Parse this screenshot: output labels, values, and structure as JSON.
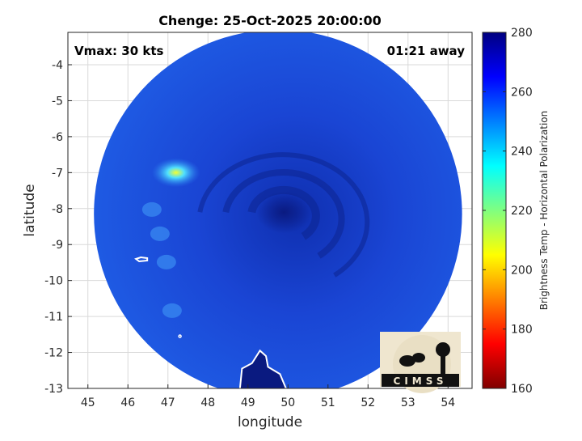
{
  "chart_data": {
    "type": "heatmap",
    "title": "Chenge: 25-Oct-2025 20:00:00",
    "xlabel": "longitude",
    "ylabel": "latitude",
    "xlim": [
      44.5,
      54.6
    ],
    "ylim": [
      -13.0,
      -3.1
    ],
    "xticks": [
      "45",
      "46",
      "47",
      "48",
      "49",
      "50",
      "51",
      "52",
      "53",
      "54"
    ],
    "yticks": [
      "-4",
      "-5",
      "-6",
      "-7",
      "-8",
      "-9",
      "-10",
      "-11",
      "-12",
      "-13"
    ],
    "grid": true,
    "annotations": {
      "left": "Vmax: 30 kts",
      "right": "01:21 away"
    },
    "colorbar": {
      "label": "Brightness Temp - Horizontal Polarization",
      "range": [
        160,
        280
      ],
      "ticks": [
        "280",
        "260",
        "240",
        "220",
        "200",
        "180",
        "160"
      ],
      "colormap": "jet"
    },
    "swath": {
      "center": [
        49.75,
        -8.15
      ],
      "radius_deg": 4.6,
      "background_value": 258
    },
    "features": [
      {
        "name": "cyclone-eye",
        "lon": 49.9,
        "lat": -8.1,
        "value": 268
      },
      {
        "name": "warm-spot",
        "lon": 47.2,
        "lat": -7.0,
        "value": 228
      },
      {
        "name": "cool-band",
        "lon": 46.8,
        "lat": -8.7,
        "value": 248
      }
    ],
    "coastline_color": "#ffffff"
  },
  "logo": {
    "text": "CIMSS"
  }
}
